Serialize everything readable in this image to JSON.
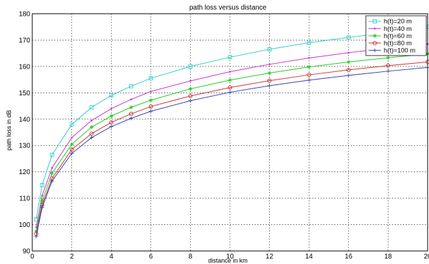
{
  "chart_data": {
    "type": "line",
    "title": "path loss versus distance",
    "xlabel": "distance in km",
    "ylabel": "path loss in dB",
    "xlim": [
      0,
      20
    ],
    "ylim": [
      90,
      180
    ],
    "xticks": [
      0,
      2,
      4,
      6,
      8,
      10,
      12,
      14,
      16,
      18,
      20
    ],
    "yticks": [
      90,
      100,
      110,
      120,
      130,
      140,
      150,
      160,
      170,
      180
    ],
    "grid": true,
    "legend_position": "top-right",
    "x": [
      0.2,
      0.5,
      1,
      2,
      3,
      4,
      5,
      6,
      8,
      10,
      12,
      14,
      16,
      18,
      20
    ],
    "series": [
      {
        "name": "h(t)=20 m",
        "color": "#33cccc",
        "marker": "square",
        "values": [
          102,
          115,
          126.5,
          138,
          144.5,
          149,
          152.5,
          155.5,
          160,
          163.5,
          166.5,
          169,
          171,
          173,
          175
        ]
      },
      {
        "name": "h(t)=40 m",
        "color": "#cc33cc",
        "marker": "dot",
        "values": [
          99,
          111,
          121.5,
          133,
          139.5,
          144,
          147.5,
          150.5,
          154.5,
          158,
          160.8,
          163.2,
          165.2,
          167,
          168.5
        ]
      },
      {
        "name": "h(t)=60 m",
        "color": "#22cc22",
        "marker": "star",
        "values": [
          97.5,
          109,
          119.5,
          130.5,
          137,
          141.2,
          144.5,
          147.2,
          151.5,
          154.8,
          157.5,
          159.8,
          161.7,
          163.3,
          164.8
        ]
      },
      {
        "name": "h(t)=80 m",
        "color": "#cc3333",
        "marker": "circle",
        "values": [
          96.5,
          107.5,
          117.5,
          128.5,
          134.5,
          138.8,
          142,
          144.8,
          148.8,
          152,
          154.6,
          156.8,
          158.7,
          160.3,
          161.7
        ]
      },
      {
        "name": "h(t)=100 m",
        "color": "#3344aa",
        "marker": "plus",
        "values": [
          95.5,
          106.5,
          116.5,
          127,
          133,
          137.2,
          140.3,
          143,
          147,
          150.2,
          152.7,
          154.8,
          156.6,
          158.2,
          159.6
        ]
      }
    ]
  }
}
